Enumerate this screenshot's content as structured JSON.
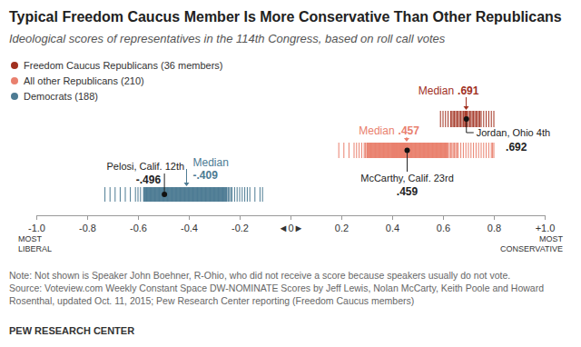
{
  "chart_data": {
    "type": "strip",
    "title": "Typical Freedom Caucus Member Is More Conservative Than Other Republicans",
    "subtitle": "Ideological scores of representatives in the 114th Congress, based on roll call votes",
    "xlim": [
      -1,
      1
    ],
    "xticks": [
      {
        "value": -1,
        "label": "-1.0"
      },
      -0.8,
      -0.6,
      -0.4,
      -0.2,
      {
        "value": 0,
        "label": "◄0►"
      },
      0.2,
      0.4,
      0.6,
      0.8,
      {
        "value": 1,
        "label": "+1.0"
      }
    ],
    "annotations": [
      {
        "text": "MOST LIBERAL",
        "x": -1
      },
      {
        "text": "MOST CONSERVATIVE",
        "x": 1
      }
    ],
    "legend": "top-left",
    "series": [
      {
        "name": "Freedom Caucus Republicans (36 members)",
        "color": "#a1301f",
        "values": [
          0.59,
          0.6,
          0.61,
          0.62,
          0.63,
          0.635,
          0.64,
          0.645,
          0.65,
          0.655,
          0.66,
          0.665,
          0.67,
          0.675,
          0.68,
          0.685,
          0.688,
          0.69,
          0.692,
          0.695,
          0.7,
          0.705,
          0.71,
          0.715,
          0.72,
          0.725,
          0.73,
          0.735,
          0.74,
          0.745,
          0.75,
          0.76,
          0.77,
          0.78,
          0.79,
          0.8
        ],
        "median_text": "Median",
        "median": {
          "value": 0.691,
          "label": ".691"
        },
        "highlight": {
          "name": "Jordan, Ohio 4th",
          "value": 0.692,
          "label": ".692"
        }
      },
      {
        "name": "All other Republicans (210)",
        "color": "#e9806e",
        "values": [
          0.19,
          0.21,
          0.23,
          0.25,
          0.26,
          0.27,
          0.28,
          0.29,
          0.295,
          0.3,
          0.302,
          0.304,
          0.306,
          0.308,
          0.31,
          0.312,
          0.314,
          0.316,
          0.318,
          0.32,
          0.322,
          0.324,
          0.326,
          0.328,
          0.33,
          0.332,
          0.334,
          0.336,
          0.338,
          0.34,
          0.342,
          0.344,
          0.346,
          0.348,
          0.35,
          0.352,
          0.354,
          0.356,
          0.358,
          0.36,
          0.362,
          0.364,
          0.366,
          0.368,
          0.37,
          0.372,
          0.374,
          0.376,
          0.378,
          0.38,
          0.382,
          0.384,
          0.386,
          0.388,
          0.39,
          0.392,
          0.394,
          0.396,
          0.398,
          0.4,
          0.402,
          0.404,
          0.406,
          0.408,
          0.41,
          0.412,
          0.414,
          0.416,
          0.418,
          0.42,
          0.422,
          0.424,
          0.426,
          0.428,
          0.43,
          0.432,
          0.434,
          0.436,
          0.438,
          0.44,
          0.442,
          0.444,
          0.446,
          0.448,
          0.45,
          0.452,
          0.454,
          0.456,
          0.401,
          0.405,
          0.409,
          0.413,
          0.417,
          0.421,
          0.425,
          0.429,
          0.433,
          0.437,
          0.441,
          0.443,
          0.445,
          0.447,
          0.449,
          0.451,
          0.453,
          0.458,
          0.459,
          0.461,
          0.463,
          0.465,
          0.467,
          0.469,
          0.471,
          0.473,
          0.475,
          0.477,
          0.479,
          0.481,
          0.483,
          0.485,
          0.487,
          0.489,
          0.491,
          0.493,
          0.495,
          0.497,
          0.499,
          0.501,
          0.503,
          0.505,
          0.507,
          0.509,
          0.511,
          0.513,
          0.515,
          0.517,
          0.519,
          0.521,
          0.523,
          0.525,
          0.527,
          0.529,
          0.531,
          0.533,
          0.535,
          0.537,
          0.539,
          0.541,
          0.543,
          0.545,
          0.547,
          0.549,
          0.551,
          0.553,
          0.555,
          0.557,
          0.559,
          0.561,
          0.563,
          0.565,
          0.567,
          0.569,
          0.571,
          0.573,
          0.575,
          0.577,
          0.579,
          0.581,
          0.583,
          0.585,
          0.587,
          0.589,
          0.591,
          0.593,
          0.595,
          0.597,
          0.599,
          0.601,
          0.603,
          0.605,
          0.607,
          0.609,
          0.611,
          0.613,
          0.615,
          0.617,
          0.619,
          0.625,
          0.63,
          0.635,
          0.64,
          0.645,
          0.65,
          0.655,
          0.66,
          0.67,
          0.68,
          0.69,
          0.7,
          0.71,
          0.72,
          0.73,
          0.74,
          0.75,
          0.76,
          0.77,
          0.78,
          0.79,
          0.795,
          0.8
        ],
        "median_text": "Median",
        "median": {
          "value": 0.457,
          "label": ".457"
        },
        "highlight": {
          "name": "McCarthy, Calif. 23rd",
          "value": 0.459,
          "label": ".459"
        }
      },
      {
        "name": "Democrats (188)",
        "color": "#4d7b93",
        "values": [
          -0.73,
          -0.71,
          -0.69,
          -0.67,
          -0.65,
          -0.63,
          -0.61,
          -0.6,
          -0.59,
          -0.578,
          -0.576,
          -0.574,
          -0.572,
          -0.57,
          -0.568,
          -0.566,
          -0.564,
          -0.562,
          -0.56,
          -0.558,
          -0.556,
          -0.554,
          -0.552,
          -0.55,
          -0.548,
          -0.546,
          -0.544,
          -0.542,
          -0.54,
          -0.538,
          -0.536,
          -0.534,
          -0.532,
          -0.53,
          -0.528,
          -0.526,
          -0.524,
          -0.522,
          -0.52,
          -0.518,
          -0.516,
          -0.514,
          -0.512,
          -0.51,
          -0.508,
          -0.506,
          -0.504,
          -0.502,
          -0.5,
          -0.498,
          -0.496,
          -0.494,
          -0.492,
          -0.49,
          -0.488,
          -0.486,
          -0.484,
          -0.482,
          -0.48,
          -0.478,
          -0.476,
          -0.474,
          -0.472,
          -0.47,
          -0.468,
          -0.466,
          -0.464,
          -0.462,
          -0.46,
          -0.458,
          -0.456,
          -0.454,
          -0.452,
          -0.45,
          -0.448,
          -0.446,
          -0.444,
          -0.442,
          -0.44,
          -0.438,
          -0.436,
          -0.434,
          -0.432,
          -0.43,
          -0.428,
          -0.426,
          -0.424,
          -0.422,
          -0.42,
          -0.418,
          -0.416,
          -0.414,
          -0.412,
          -0.41,
          -0.408,
          -0.406,
          -0.404,
          -0.402,
          -0.4,
          -0.398,
          -0.396,
          -0.394,
          -0.392,
          -0.39,
          -0.388,
          -0.386,
          -0.384,
          -0.382,
          -0.38,
          -0.378,
          -0.376,
          -0.374,
          -0.372,
          -0.37,
          -0.368,
          -0.366,
          -0.364,
          -0.362,
          -0.36,
          -0.358,
          -0.356,
          -0.354,
          -0.352,
          -0.35,
          -0.348,
          -0.346,
          -0.344,
          -0.342,
          -0.34,
          -0.338,
          -0.336,
          -0.334,
          -0.332,
          -0.33,
          -0.328,
          -0.326,
          -0.324,
          -0.322,
          -0.32,
          -0.318,
          -0.316,
          -0.314,
          -0.312,
          -0.31,
          -0.308,
          -0.306,
          -0.304,
          -0.302,
          -0.3,
          -0.298,
          -0.296,
          -0.294,
          -0.292,
          -0.29,
          -0.288,
          -0.286,
          -0.284,
          -0.282,
          -0.28,
          -0.278,
          -0.276,
          -0.274,
          -0.272,
          -0.27,
          -0.268,
          -0.266,
          -0.264,
          -0.262,
          -0.26,
          -0.258,
          -0.256,
          -0.254,
          -0.252,
          -0.25,
          -0.245,
          -0.24,
          -0.235,
          -0.23,
          -0.22,
          -0.21,
          -0.2,
          -0.19,
          -0.18,
          -0.17,
          -0.16,
          -0.14,
          -0.12,
          -0.11
        ],
        "median_text": "Median",
        "median": {
          "value": -0.409,
          "label": "-.409"
        },
        "highlight": {
          "name": "Pelosi, Calif. 12th",
          "value": -0.496,
          "label": "-.496"
        }
      }
    ],
    "notes": [
      "Note: Not shown is Speaker John Boehner, R-Ohio, who did not receive a score because speakers usually do not vote.",
      "Source: Voteview.com Weekly Constant Space DW-NOMINATE Scores by Jeff Lewis, Nolan McCarty, Keith Poole and Howard",
      "Rosenthal, updated Oct. 11, 2015; Pew Research Center reporting (Freedom Caucus members)"
    ],
    "credit": "PEW RESEARCH CENTER"
  }
}
